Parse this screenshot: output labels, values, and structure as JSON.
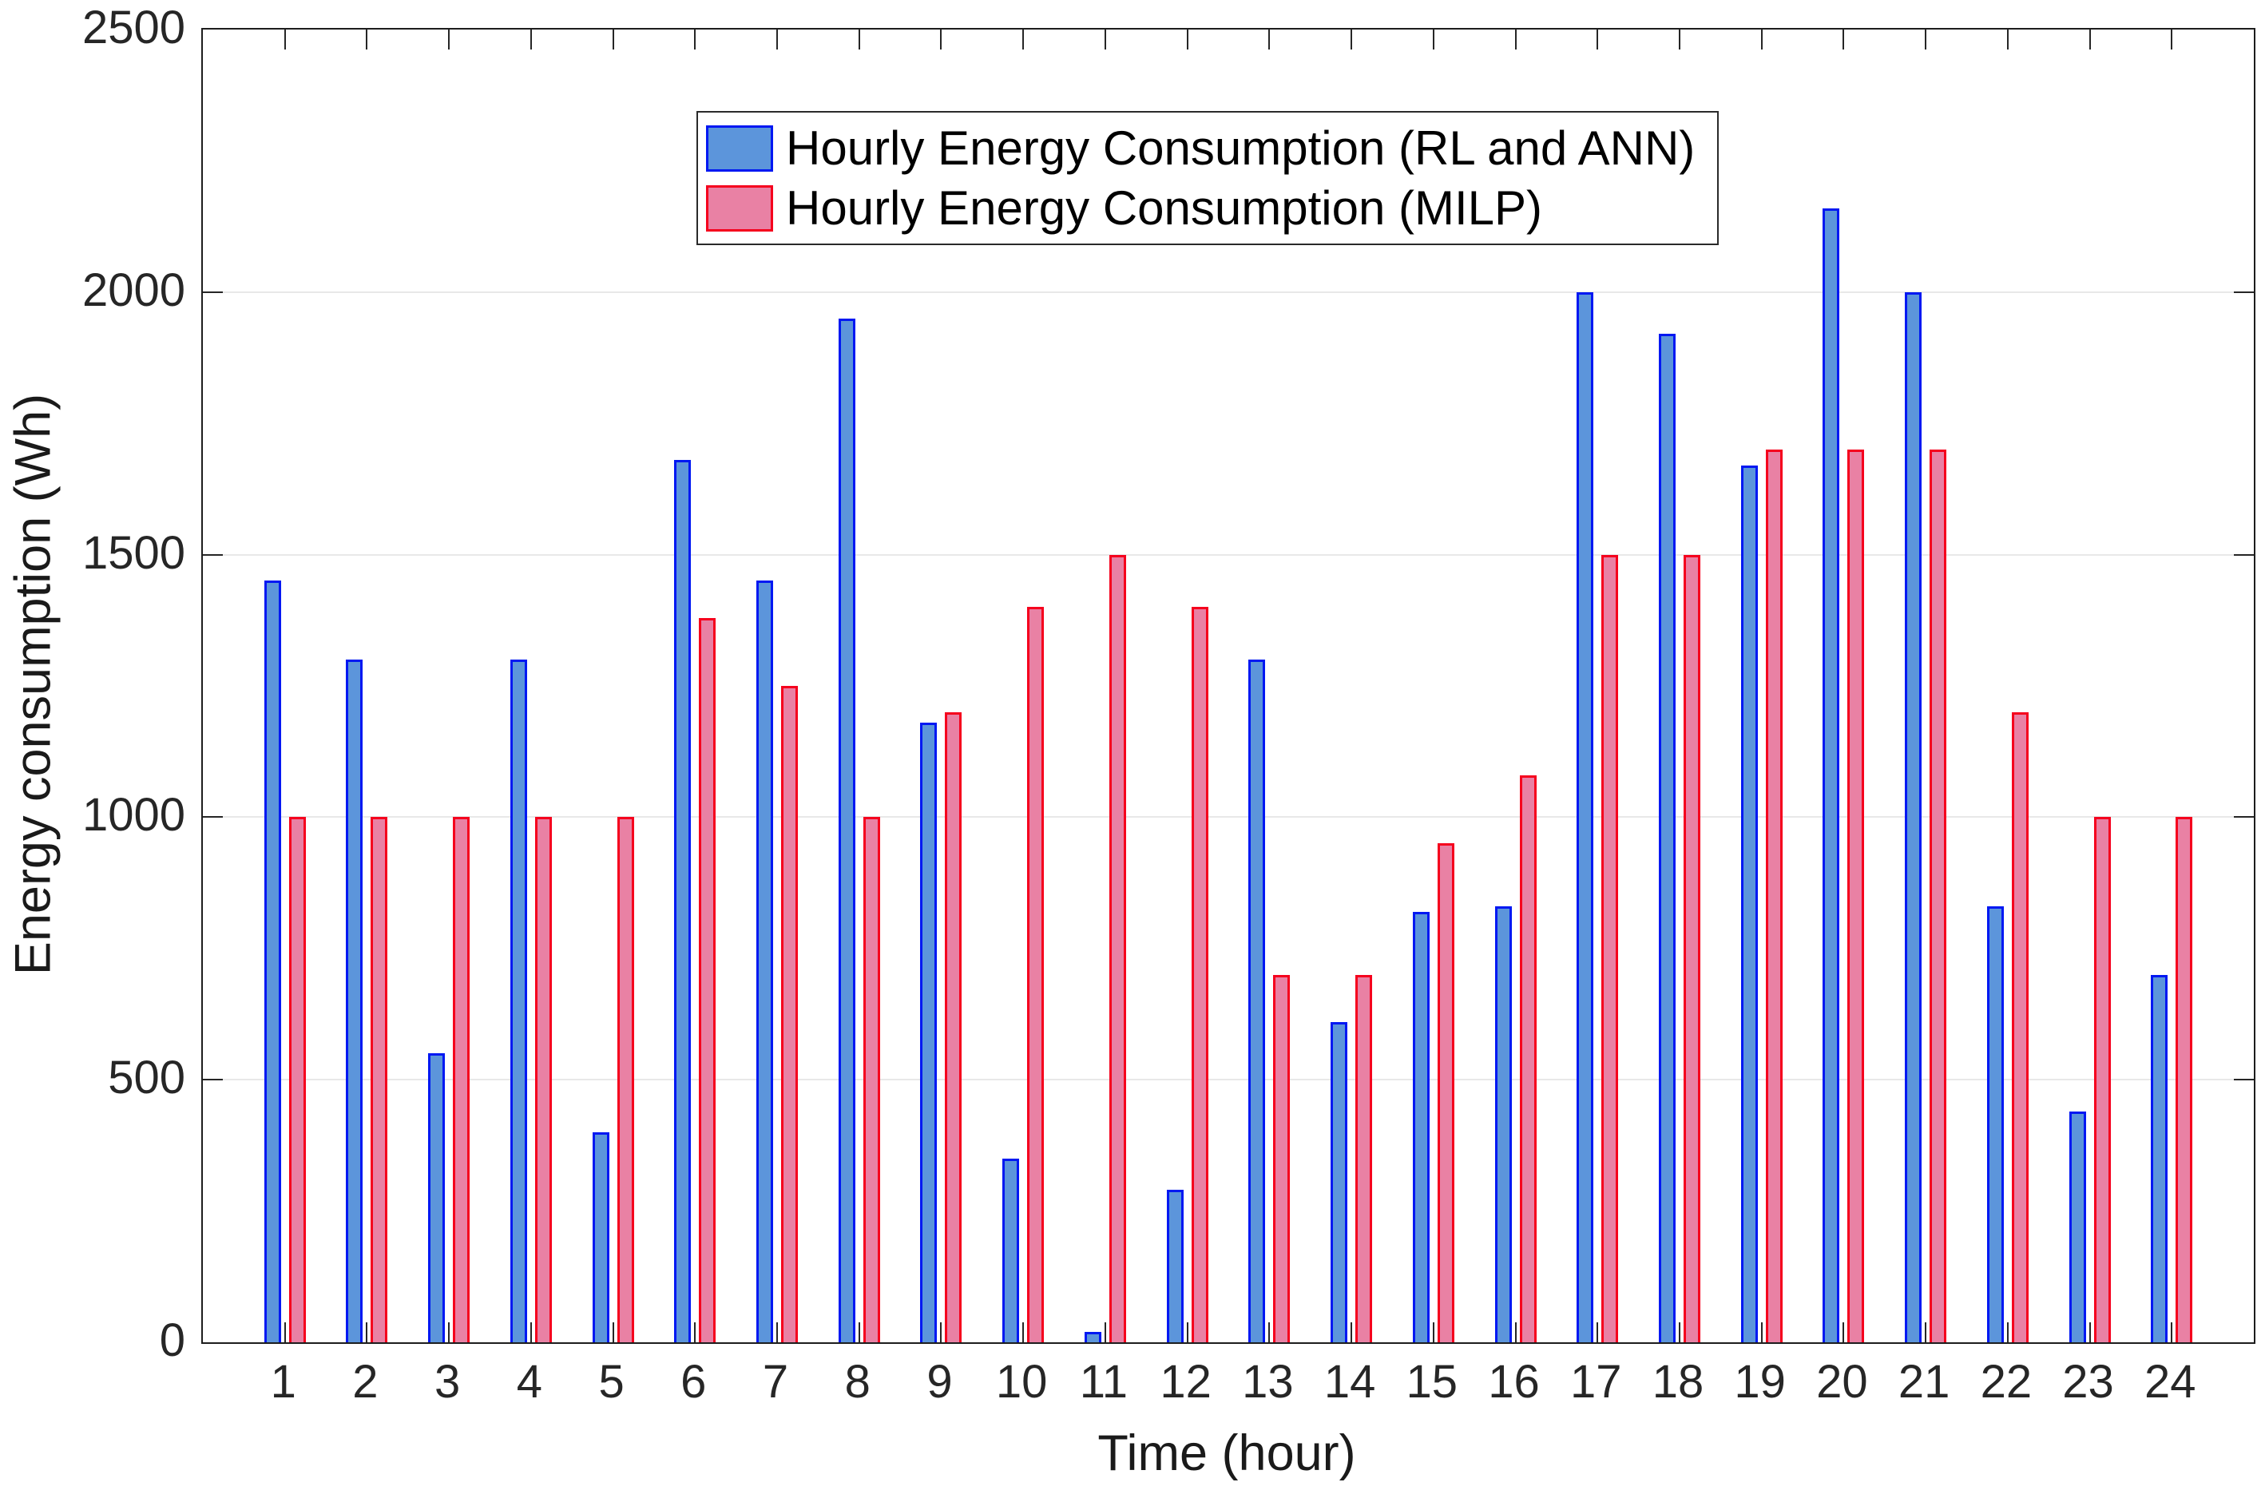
{
  "chart_data": {
    "type": "bar",
    "title": "",
    "xlabel": "Time (hour)",
    "ylabel": "Energy consumption (Wh)",
    "categories": [
      1,
      2,
      3,
      4,
      5,
      6,
      7,
      8,
      9,
      10,
      11,
      12,
      13,
      14,
      15,
      16,
      17,
      18,
      19,
      20,
      21,
      22,
      23,
      24
    ],
    "series": [
      {
        "name": "Hourly Energy Consumption (RL and ANN)",
        "fill_color": "#5c95db",
        "edge_color": "#0018f2",
        "values": [
          1450,
          1300,
          550,
          1300,
          400,
          1680,
          1450,
          1950,
          1180,
          350,
          20,
          290,
          1300,
          610,
          820,
          830,
          2000,
          1920,
          1670,
          2160,
          2000,
          830,
          440,
          700
        ]
      },
      {
        "name": "Hourly Energy Consumption (MILP)",
        "fill_color": "#e981a4",
        "edge_color": "#f5001d",
        "values": [
          1000,
          1000,
          1000,
          1000,
          1000,
          1380,
          1250,
          1000,
          1200,
          1400,
          1500,
          1400,
          700,
          700,
          950,
          1080,
          1500,
          1500,
          1700,
          1700,
          1700,
          1200,
          1000,
          1000
        ]
      }
    ],
    "ylim": [
      0,
      2500
    ],
    "y_ticks": [
      0,
      500,
      1000,
      1500,
      2000,
      2500
    ],
    "xlim": [
      0,
      25
    ],
    "grid": "horizontal-only",
    "gridline_color": "#e8e8e8",
    "legend_position": "top-inside",
    "axis_text_color": "#262626"
  }
}
